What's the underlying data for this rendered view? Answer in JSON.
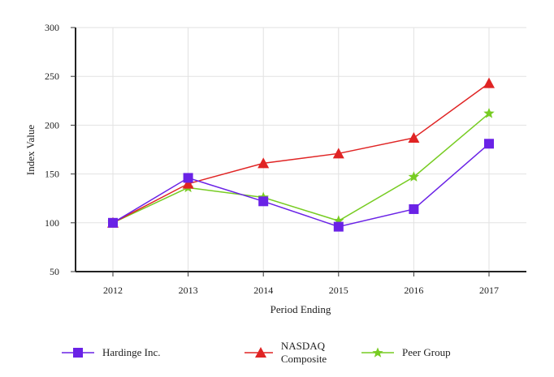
{
  "chart_data": {
    "type": "line",
    "title": "",
    "xlabel": "Period Ending",
    "ylabel": "Index Value",
    "categories": [
      "2012",
      "2013",
      "2014",
      "2015",
      "2016",
      "2017"
    ],
    "ylim": [
      50,
      300
    ],
    "yticks": [
      50,
      100,
      150,
      200,
      250,
      300
    ],
    "grid": true,
    "legend_position": "bottom",
    "series": [
      {
        "name": "Hardinge Inc.",
        "marker": "square",
        "color": "#6a22e6",
        "values": [
          100,
          146,
          122,
          96,
          114,
          181
        ]
      },
      {
        "name": "NASDAQ Composite",
        "marker": "triangle",
        "color": "#e02424",
        "values": [
          100,
          140,
          161,
          171,
          187,
          243
        ]
      },
      {
        "name": "Peer Group",
        "marker": "star",
        "color": "#77cc22",
        "values": [
          100,
          136,
          126,
          102,
          147,
          212
        ]
      }
    ]
  },
  "legend": {
    "items": [
      {
        "label": "Hardinge Inc."
      },
      {
        "label": "NASDAQ Composite"
      },
      {
        "label": "Peer Group"
      }
    ]
  }
}
